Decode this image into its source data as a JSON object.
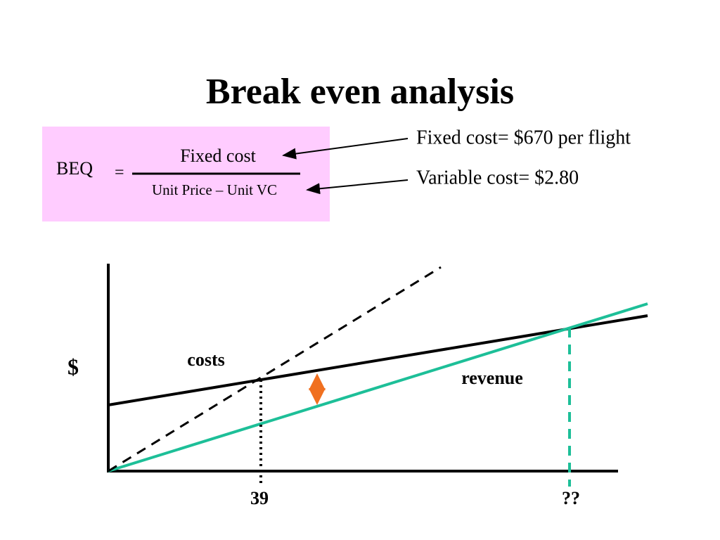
{
  "title": "Break even analysis",
  "formula": {
    "lhs": "BEQ",
    "equals": "=",
    "numerator": "Fixed cost",
    "denominator": "Unit Price – Unit VC"
  },
  "notes": [
    "Fixed cost= $670 per flight",
    "Variable cost= $2.80"
  ],
  "diagram": {
    "y_label": "$",
    "line_labels": [
      "costs",
      "revenue"
    ],
    "x_labels": [
      "39",
      "??"
    ]
  }
}
